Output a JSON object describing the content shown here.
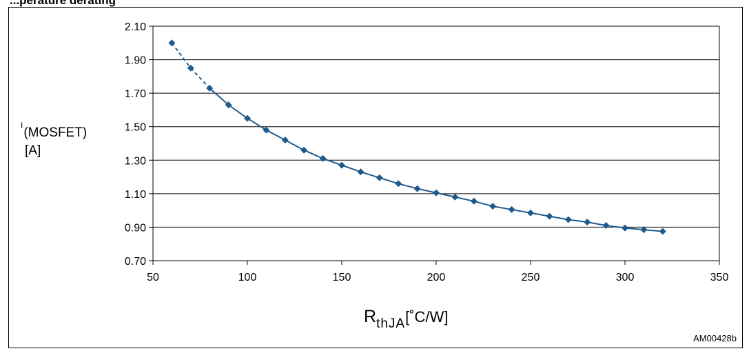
{
  "header_fragment": "...perature derating",
  "chart_data": {
    "type": "line",
    "title": "",
    "xlabel": {
      "main": "R",
      "sub": "thJA",
      "unit": "[˚C/W]"
    },
    "ylabel": {
      "pre": "I",
      "main": "(MOSFET)",
      "unit": "[A]"
    },
    "xlim": [
      50,
      350
    ],
    "ylim": [
      0.7,
      2.1
    ],
    "x_ticks": [
      50,
      100,
      150,
      200,
      250,
      300,
      350
    ],
    "y_ticks": [
      "0.70",
      "0.90",
      "1.10",
      "1.30",
      "1.50",
      "1.70",
      "1.90",
      "2.10"
    ],
    "grid": "horizontal",
    "series": [
      {
        "color": "#1f5a8e",
        "marker": "diamond",
        "dashed_segments": [
          0,
          1
        ],
        "x": [
          60,
          70,
          80,
          90,
          100,
          110,
          120,
          130,
          140,
          150,
          160,
          170,
          180,
          190,
          200,
          210,
          220,
          230,
          240,
          250,
          260,
          270,
          280,
          290,
          300,
          310,
          320
        ],
        "y": [
          2.0,
          1.85,
          1.73,
          1.63,
          1.55,
          1.48,
          1.42,
          1.36,
          1.31,
          1.27,
          1.23,
          1.195,
          1.16,
          1.13,
          1.105,
          1.08,
          1.055,
          1.025,
          1.005,
          0.985,
          0.965,
          0.945,
          0.93,
          0.91,
          0.895,
          0.885,
          0.875
        ]
      }
    ]
  },
  "figure_code": "AM00428b"
}
